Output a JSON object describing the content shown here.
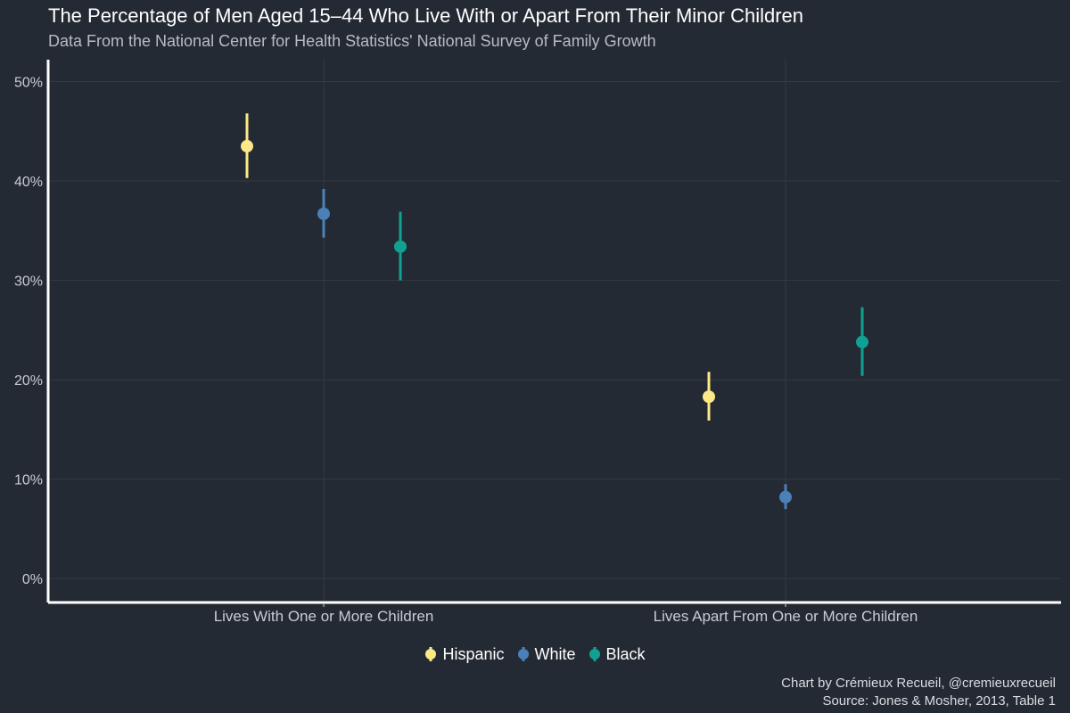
{
  "chart_data": {
    "type": "scatter",
    "title": "The Percentage of Men Aged 15–44 Who Live With or Apart From Their Minor Children",
    "subtitle": "Data From the National Center for Health Statistics' National Survey of Family Growth",
    "xlabel": "",
    "ylabel": "",
    "ylim": [
      -2.4,
      52.2
    ],
    "yticks": [
      0,
      10,
      20,
      30,
      40,
      50
    ],
    "ytick_labels": [
      "0%",
      "10%",
      "20%",
      "30%",
      "40%",
      "50%"
    ],
    "categories": [
      "Lives With One or More Children",
      "Lives Apart From One or More Children"
    ],
    "grid": true,
    "legend_position": "bottom",
    "series": [
      {
        "name": "Hispanic",
        "color": "#fbe987",
        "values": [
          43.5,
          18.3
        ],
        "lower": [
          40.3,
          15.9
        ],
        "upper": [
          46.8,
          20.8
        ]
      },
      {
        "name": "White",
        "color": "#4b81b7",
        "values": [
          36.7,
          8.2
        ],
        "lower": [
          34.3,
          7.0
        ],
        "upper": [
          39.2,
          9.5
        ]
      },
      {
        "name": "Black",
        "color": "#11a193",
        "values": [
          33.4,
          23.8
        ],
        "lower": [
          30.0,
          20.4
        ],
        "upper": [
          36.9,
          27.3
        ]
      }
    ]
  },
  "caption": {
    "line1": "Chart by Crémieux Recueil, @cremieuxrecueil",
    "line2": "Source: Jones & Mosher, 2013, Table 1"
  }
}
